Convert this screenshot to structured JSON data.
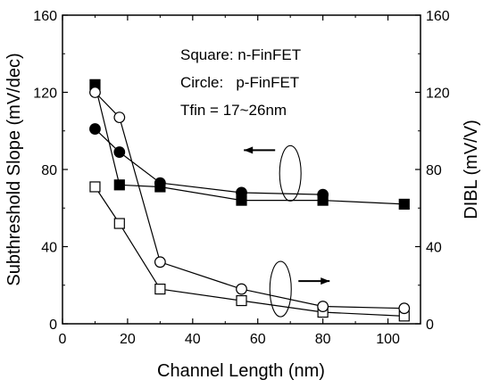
{
  "chart_data": {
    "type": "scatter",
    "xlabel": "Channel Length (nm)",
    "ylabel_left": "Subthreshold Slope (mV/dec)",
    "ylabel_right": "DIBL (mV/V)",
    "xlim": [
      0,
      110
    ],
    "ylim_left": [
      0,
      160
    ],
    "ylim_right": [
      0,
      160
    ],
    "xticks": [
      0,
      20,
      40,
      60,
      80,
      100
    ],
    "yticks_left": [
      0,
      40,
      80,
      120,
      160
    ],
    "yticks_right": [
      0,
      40,
      80,
      120,
      160
    ],
    "annotations": {
      "line1": "Square: n-FinFET",
      "line2": "Circle:   p-FinFET",
      "line3": "Tfin = 17~26nm"
    },
    "series": [
      {
        "axis": "left",
        "marker": "square",
        "filled": true,
        "x": [
          10,
          17.5,
          30,
          55,
          80,
          105
        ],
        "y": [
          124,
          72,
          71,
          64,
          64,
          62
        ]
      },
      {
        "axis": "left",
        "marker": "circle",
        "filled": true,
        "x": [
          10,
          17.5,
          30,
          55,
          80
        ],
        "y": [
          101,
          89,
          73,
          68,
          67
        ]
      },
      {
        "axis": "right",
        "marker": "square",
        "filled": false,
        "x": [
          10,
          17.5,
          30,
          55,
          80,
          105
        ],
        "y": [
          71,
          52,
          18,
          12,
          6,
          4
        ]
      },
      {
        "axis": "right",
        "marker": "circle",
        "filled": false,
        "x": [
          10,
          17.5,
          30,
          55,
          80,
          105
        ],
        "y": [
          120,
          107,
          32,
          18,
          9,
          8
        ]
      }
    ],
    "indicators": [
      {
        "target": "left axis",
        "direction": "left",
        "anchor_x": 70,
        "anchor_y": 78
      },
      {
        "target": "right axis",
        "direction": "right",
        "anchor_x": 67,
        "anchor_y": 18
      }
    ]
  }
}
